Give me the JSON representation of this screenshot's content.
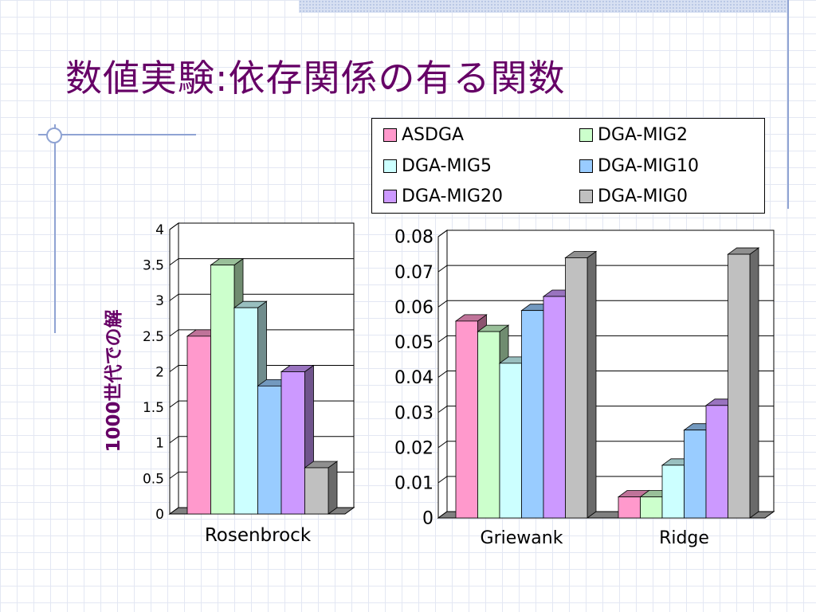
{
  "slide": {
    "title": "数値実験:依存関係の有る関数",
    "ylabel": "1000世代での解"
  },
  "legend": [
    {
      "name": "ASDGA",
      "color": "#ff99cc"
    },
    {
      "name": "DGA-MIG2",
      "color": "#ccffcc"
    },
    {
      "name": "DGA-MIG5",
      "color": "#ccffff"
    },
    {
      "name": "DGA-MIG10",
      "color": "#99ccff"
    },
    {
      "name": "DGA-MIG20",
      "color": "#cc99ff"
    },
    {
      "name": "DGA-MIG0",
      "color": "#c0c0c0"
    }
  ],
  "chart_data": [
    {
      "type": "bar",
      "categories": [
        "Rosenbrock"
      ],
      "yticks": [
        "0",
        "0.5",
        "1",
        "1.5",
        "2",
        "2.5",
        "3",
        "3.5",
        "4"
      ],
      "ylim": [
        0,
        4
      ],
      "series": [
        {
          "name": "ASDGA",
          "values": [
            2.5
          ]
        },
        {
          "name": "DGA-MIG2",
          "values": [
            3.5
          ]
        },
        {
          "name": "DGA-MIG5",
          "values": [
            2.9
          ]
        },
        {
          "name": "DGA-MIG10",
          "values": [
            1.8
          ]
        },
        {
          "name": "DGA-MIG20",
          "values": [
            2.0
          ]
        },
        {
          "name": "DGA-MIG0",
          "values": [
            0.65
          ]
        }
      ]
    },
    {
      "type": "bar",
      "categories": [
        "Griewank",
        "Ridge"
      ],
      "yticks": [
        "0",
        "0.01",
        "0.02",
        "0.03",
        "0.04",
        "0.05",
        "0.06",
        "0.07",
        "0.08"
      ],
      "ylim": [
        0,
        0.08
      ],
      "series": [
        {
          "name": "ASDGA",
          "values": [
            0.056,
            0.006
          ]
        },
        {
          "name": "DGA-MIG2",
          "values": [
            0.053,
            0.006
          ]
        },
        {
          "name": "DGA-MIG5",
          "values": [
            0.044,
            0.015
          ]
        },
        {
          "name": "DGA-MIG10",
          "values": [
            0.059,
            0.025
          ]
        },
        {
          "name": "DGA-MIG20",
          "values": [
            0.063,
            0.032
          ]
        },
        {
          "name": "DGA-MIG0",
          "values": [
            0.074,
            0.075
          ]
        }
      ]
    }
  ]
}
